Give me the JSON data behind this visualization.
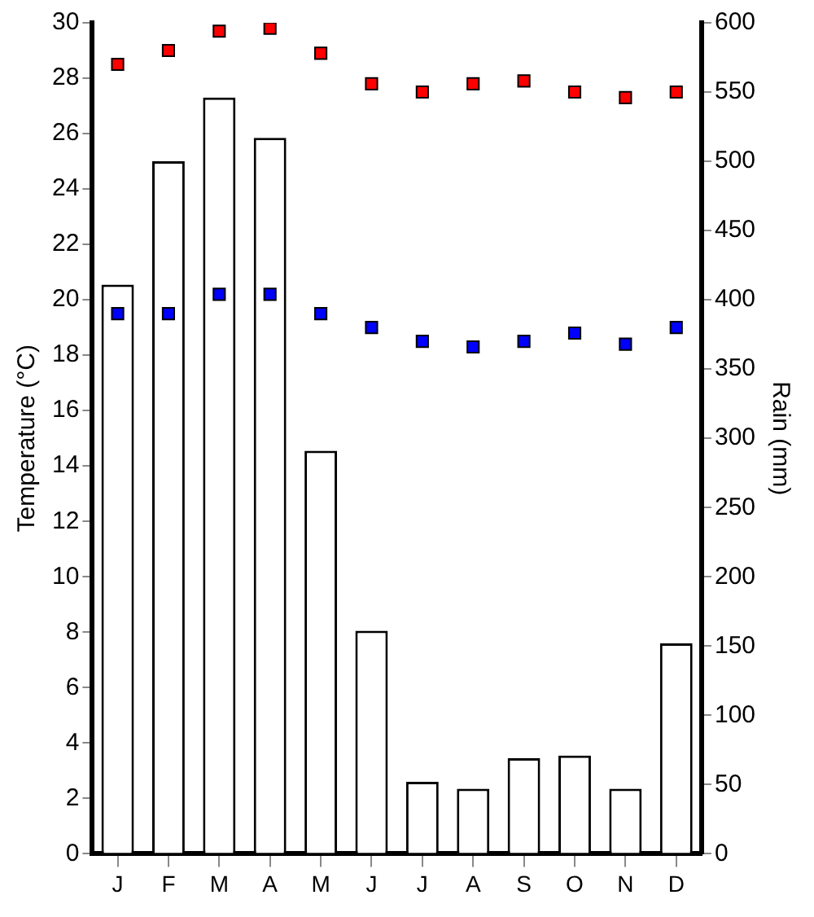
{
  "chart_data": {
    "type": "bar",
    "ylabel": "Temperature (°C)",
    "y2label": "Rain (mm)",
    "categories": [
      "J",
      "F",
      "M",
      "A",
      "M",
      "J",
      "J",
      "A",
      "S",
      "O",
      "N",
      "D"
    ],
    "series": [
      {
        "axis": "y2",
        "color": "#ffffff",
        "values": [
          411,
          500,
          546,
          517,
          291,
          161,
          52,
          47,
          69,
          71,
          47,
          152
        ]
      },
      {
        "type": "scatter",
        "axis": "y",
        "color": "#ff0000",
        "values": [
          28.5,
          29.0,
          29.7,
          29.8,
          28.9,
          27.8,
          27.5,
          27.8,
          27.9,
          27.5,
          27.3,
          27.5
        ]
      },
      {
        "type": "scatter",
        "axis": "y",
        "color": "#0000ff",
        "values": [
          19.5,
          19.5,
          20.2,
          20.2,
          19.5,
          19.0,
          18.5,
          18.3,
          18.5,
          18.8,
          18.4,
          19.0
        ]
      }
    ],
    "ylim": [
      0,
      30
    ],
    "yticks": [
      0,
      2,
      4,
      6,
      8,
      10,
      12,
      14,
      16,
      18,
      20,
      22,
      24,
      26,
      28,
      30
    ],
    "y2lim": [
      0,
      600
    ],
    "y2ticks": [
      0,
      50,
      100,
      150,
      200,
      250,
      300,
      350,
      400,
      450,
      500,
      550,
      600
    ],
    "marker": "square",
    "grid": false,
    "legend": false
  }
}
